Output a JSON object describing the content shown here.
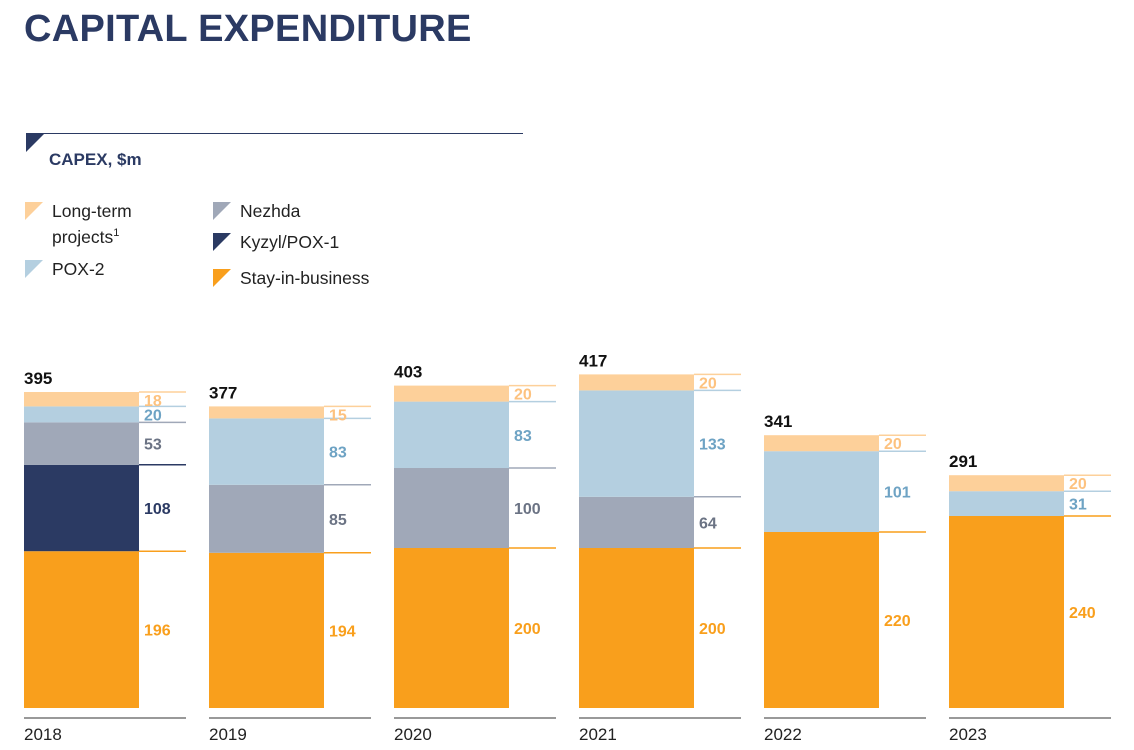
{
  "title": "CAPITAL EXPENDITURE",
  "subtitle": "CAPEX, $m",
  "colors": {
    "title": "#2b3a63",
    "long_term": "#fdd09a",
    "pox2": "#b4cfe0",
    "nezhda": "#a0a8b8",
    "kyzyl": "#2b3a63",
    "stay": "#f99f1c"
  },
  "legend": [
    {
      "key": "long_term",
      "label": "Long-term",
      "label2": "projects",
      "sup": "1"
    },
    {
      "key": "pox2",
      "label": "POX-2"
    },
    {
      "key": "nezhda",
      "label": "Nezhda"
    },
    {
      "key": "kyzyl",
      "label": "Kyzyl/POX-1"
    },
    {
      "key": "stay",
      "label": "Stay-in-business"
    }
  ],
  "chart_data": {
    "type": "bar",
    "stacked": true,
    "categories": [
      "2018",
      "2019",
      "2020",
      "2021",
      "2022",
      "2023"
    ],
    "totals": [
      395,
      377,
      403,
      417,
      341,
      291
    ],
    "series": [
      {
        "name": "Stay-in-business",
        "key": "stay",
        "values": [
          196,
          194,
          200,
          200,
          220,
          240
        ]
      },
      {
        "name": "Kyzyl/POX-1",
        "key": "kyzyl",
        "values": [
          108,
          null,
          null,
          null,
          null,
          null
        ]
      },
      {
        "name": "Nezhda",
        "key": "nezhda",
        "values": [
          53,
          85,
          100,
          64,
          null,
          null
        ]
      },
      {
        "name": "POX-2",
        "key": "pox2",
        "values": [
          20,
          83,
          83,
          133,
          101,
          31
        ]
      },
      {
        "name": "Long-term projects",
        "key": "long_term",
        "values": [
          18,
          15,
          20,
          20,
          20,
          20
        ]
      }
    ],
    "label_colors": {
      "stay": "#f99f1c",
      "kyzyl": "#2b3a63",
      "nezhda": "#6b7384",
      "pox2": "#6ea3c4",
      "long_term": "#fdc27f"
    },
    "ylim": [
      0,
      417
    ]
  }
}
